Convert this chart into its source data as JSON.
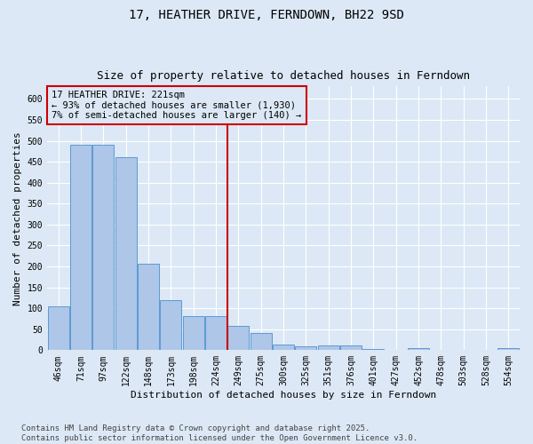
{
  "title": "17, HEATHER DRIVE, FERNDOWN, BH22 9SD",
  "subtitle": "Size of property relative to detached houses in Ferndown",
  "xlabel": "Distribution of detached houses by size in Ferndown",
  "ylabel": "Number of detached properties",
  "categories": [
    "46sqm",
    "71sqm",
    "97sqm",
    "122sqm",
    "148sqm",
    "173sqm",
    "198sqm",
    "224sqm",
    "249sqm",
    "275sqm",
    "300sqm",
    "325sqm",
    "351sqm",
    "376sqm",
    "401sqm",
    "427sqm",
    "452sqm",
    "478sqm",
    "503sqm",
    "528sqm",
    "554sqm"
  ],
  "values": [
    105,
    490,
    490,
    460,
    207,
    120,
    82,
    82,
    57,
    40,
    13,
    9,
    11,
    11,
    2,
    0,
    5,
    0,
    0,
    0,
    5
  ],
  "bar_color": "#aec6e8",
  "bar_edge_color": "#5b9bd5",
  "background_color": "#dce8f5",
  "grid_color": "#ffffff",
  "vline_color": "#cc0000",
  "vline_x_index": 7.5,
  "annotation_text": "17 HEATHER DRIVE: 221sqm\n← 93% of detached houses are smaller (1,930)\n7% of semi-detached houses are larger (140) →",
  "annotation_box_color": "#cc0000",
  "ylim": [
    0,
    630
  ],
  "yticks": [
    0,
    50,
    100,
    150,
    200,
    250,
    300,
    350,
    400,
    450,
    500,
    550,
    600
  ],
  "footer": "Contains HM Land Registry data © Crown copyright and database right 2025.\nContains public sector information licensed under the Open Government Licence v3.0.",
  "title_fontsize": 10,
  "subtitle_fontsize": 9,
  "xlabel_fontsize": 8,
  "ylabel_fontsize": 8,
  "tick_fontsize": 7,
  "annot_fontsize": 7.5,
  "footer_fontsize": 6.5
}
